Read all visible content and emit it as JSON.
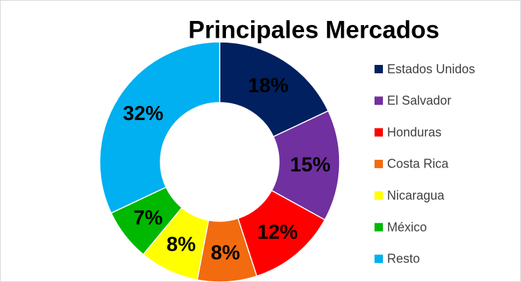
{
  "chart_data": {
    "type": "donut",
    "title": "Principales Mercados",
    "categories": [
      "Estados Unidos",
      "El Salvador",
      "Honduras",
      "Costa Rica",
      "Nicaragua",
      "México",
      "Resto"
    ],
    "values": [
      18,
      15,
      12,
      8,
      8,
      7,
      32
    ],
    "value_labels": [
      "18%",
      "15%",
      "12%",
      "8%",
      "8%",
      "7%",
      "32%"
    ],
    "colors": [
      "#002060",
      "#7030a0",
      "#ff0000",
      "#f26b0f",
      "#ffff00",
      "#00b800",
      "#00b0f0"
    ],
    "legend": "right"
  }
}
